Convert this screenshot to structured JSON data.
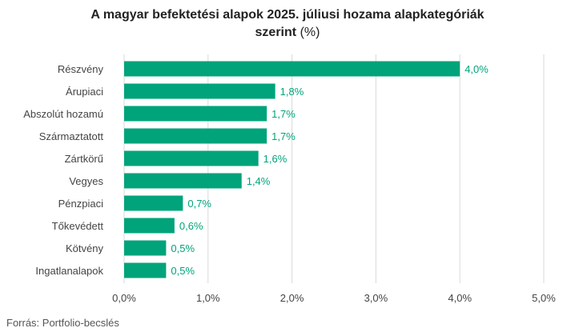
{
  "title_main": "A magyar befektetési alapok 2025. júliusi hozama alapkategóriák",
  "title_second": "szerint",
  "title_unit": "(%)",
  "source": "Forrás: Portfolio-becslés",
  "colors": {
    "bar": "#00a37a",
    "label": "#00a37a",
    "grid": "#d9d9d9",
    "category_text": "#444444",
    "tick_text": "#444444"
  },
  "chart_data": {
    "type": "bar",
    "orientation": "horizontal",
    "categories": [
      "Részvény",
      "Árupiaci",
      "Abszolút hozamú",
      "Származtatott",
      "Zártkörű",
      "Vegyes",
      "Pénzpiaci",
      "Tőkevédett",
      "Kötvény",
      "Ingatlanalapok"
    ],
    "values": [
      4.0,
      1.8,
      1.7,
      1.7,
      1.6,
      1.4,
      0.7,
      0.6,
      0.5,
      0.5
    ],
    "value_labels": [
      "4,0%",
      "1,8%",
      "1,7%",
      "1,7%",
      "1,6%",
      "1,4%",
      "0,7%",
      "0,6%",
      "0,5%",
      "0,5%"
    ],
    "x_ticks": [
      0,
      1,
      2,
      3,
      4,
      5
    ],
    "x_tick_labels": [
      "0,0%",
      "1,0%",
      "2,0%",
      "3,0%",
      "4,0%",
      "5,0%"
    ],
    "xlim": [
      0,
      5
    ],
    "grid": true,
    "legend": "none"
  }
}
